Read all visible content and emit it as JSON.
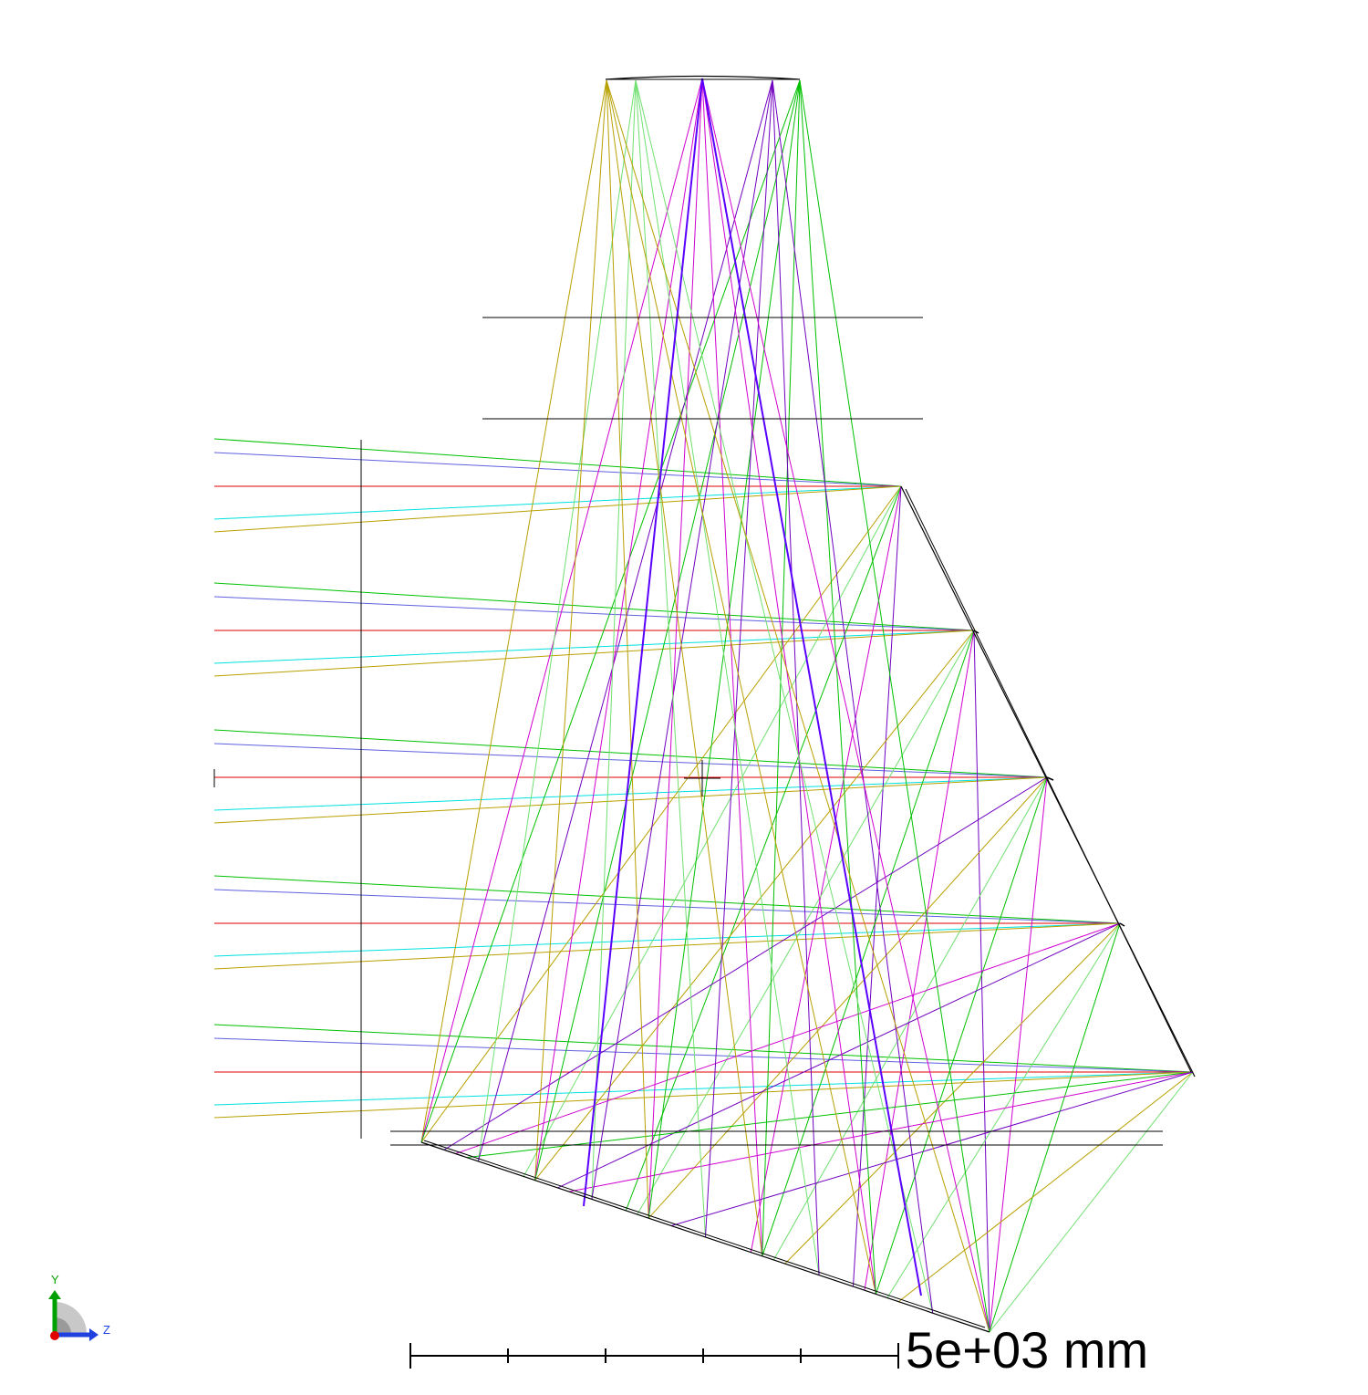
{
  "colors": {
    "background": "#ffffff",
    "surface": "#000000",
    "ray_red": "#e00000",
    "ray_green": "#00c000",
    "ray_blue": "#6060e0",
    "ray_cyan": "#00e0e0",
    "ray_olive": "#b8a000",
    "ray_lightgreen": "#70e070",
    "ray_purple": "#7000c0",
    "ray_magenta": "#d000d0",
    "axis_y": "#00a000",
    "axis_z": "#2040e0",
    "axis_x": "#e00000"
  },
  "axis_triad": {
    "y_label": "Y",
    "z_label": "Z",
    "icon": "xyz-axis-triad-icon"
  },
  "scale_bar": {
    "label": "5e+03 mm",
    "ticks": 6
  }
}
